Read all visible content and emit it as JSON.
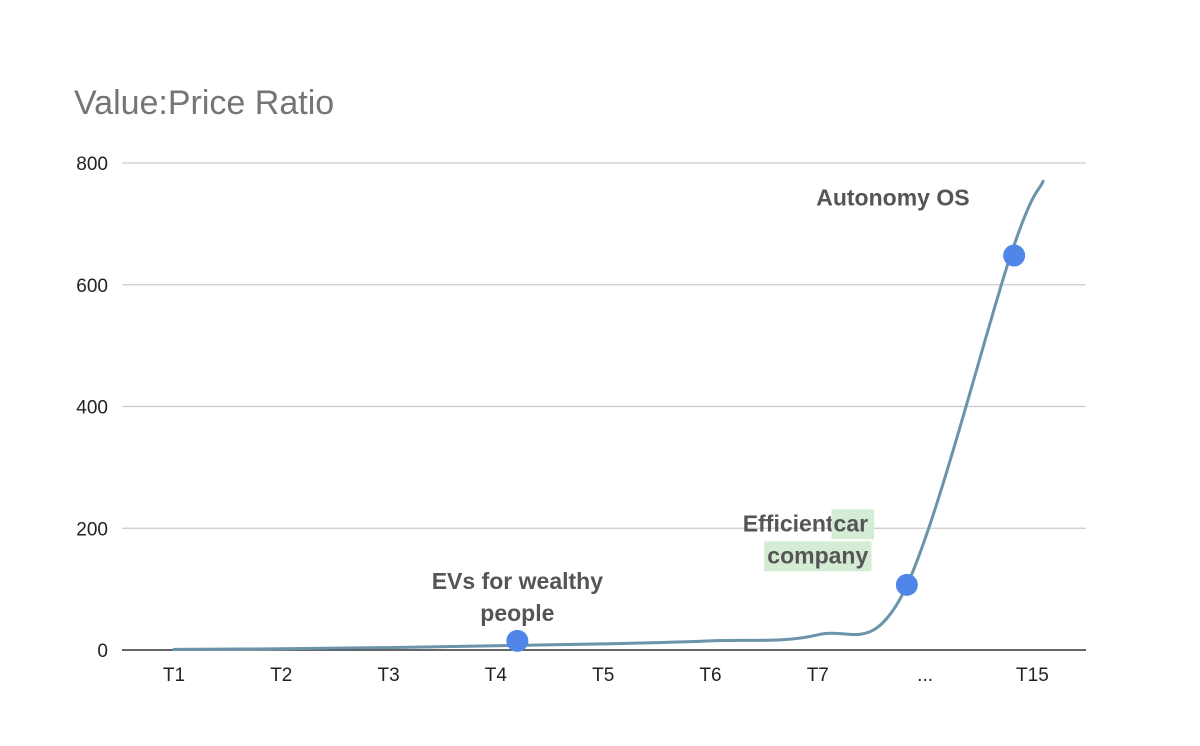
{
  "chart_data": {
    "type": "line",
    "title": "Value:Price Ratio",
    "xlabel": "",
    "ylabel": "",
    "categories": [
      "T1",
      "T2",
      "T3",
      "T4",
      "T5",
      "T6",
      "T7",
      "...",
      "T15"
    ],
    "ylim": [
      0,
      800
    ],
    "yticks": [
      "0",
      "200",
      "400",
      "600",
      "800"
    ],
    "grid": true,
    "legend": "none",
    "series": [
      {
        "x": [
          1,
          2,
          3,
          4,
          5,
          6,
          7,
          7.8,
          8.8,
          9.1
        ],
        "values": [
          1,
          2,
          4,
          7,
          10,
          15,
          25,
          95,
          650,
          770
        ],
        "color": "#6b93a9"
      }
    ],
    "markers": [
      {
        "x": 4.2,
        "y": 15,
        "color": "#4f86e8"
      },
      {
        "x": 7.83,
        "y": 107,
        "color": "#4f86e8"
      },
      {
        "x": 8.83,
        "y": 648,
        "color": "#4f86e8"
      }
    ],
    "annotations": [
      {
        "lines": [
          "EVs for wealthy",
          "people"
        ],
        "x": 4.2,
        "y": 100
      },
      {
        "lines": [
          "Efficient car",
          "company"
        ],
        "x": 7.0,
        "y": 195,
        "highlight_color": "#d5ecd4"
      },
      {
        "lines": [
          "Autonomy OS"
        ],
        "x": 7.7,
        "y": 730
      }
    ],
    "colors": {
      "gridline": "#cccccc",
      "axis": "#333333",
      "line": "#6b93a9",
      "marker": "#4f86e8"
    }
  }
}
